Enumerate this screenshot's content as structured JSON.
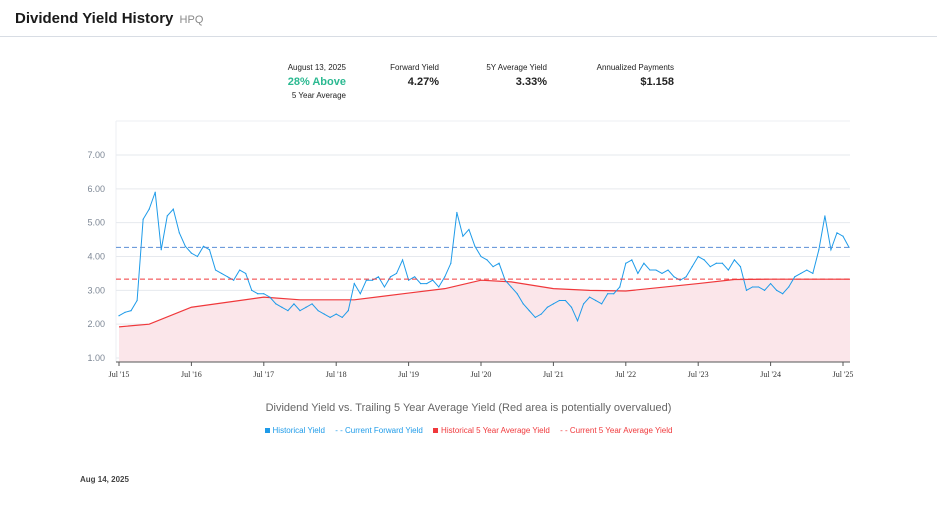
{
  "header": {
    "title": "Dividend Yield History",
    "ticker": "HPQ"
  },
  "stats": {
    "date": "August 13, 2025",
    "relative": "28% Above",
    "relative_sub": "5 Year Average",
    "forward_label": "Forward Yield",
    "forward_value": "4.27%",
    "avg_label": "5Y Average Yield",
    "avg_value": "3.33%",
    "payments_label": "Annualized Payments",
    "payments_value": "$1.158"
  },
  "footer_date": "Aug 14, 2025",
  "colors": {
    "yield": "#1e9be9",
    "avg": "#f0383b",
    "fill": "#fbe6ea",
    "green": "#2bb991"
  },
  "chart_data": {
    "type": "line",
    "subtitle": "Dividend Yield vs. Trailing 5 Year Average Yield (Red area is potentially overvalued)",
    "ylim": [
      1,
      8
    ],
    "yticks": [
      "1.00",
      "2.00",
      "3.00",
      "4.00",
      "5.00",
      "6.00",
      "7.00"
    ],
    "xticks": [
      "Jul '15",
      "Jul '16",
      "Jul '17",
      "Jul '18",
      "Jul '19",
      "Jul '20",
      "Jul '21",
      "Jul '22",
      "Jul '23",
      "Jul '24",
      "Jul '25"
    ],
    "grid": true,
    "legend_position": "bottom",
    "legend": [
      "Historical Yield",
      "Current Forward Yield",
      "Historical 5 Year Average Yield",
      "Current 5 Year Average Yield"
    ],
    "current_forward_yield": 4.27,
    "current_5y_average": 3.33,
    "series": [
      {
        "name": "Historical Yield",
        "x": [
          "2015-07",
          "2015-08",
          "2015-09",
          "2015-10",
          "2015-11",
          "2015-12",
          "2016-01",
          "2016-02",
          "2016-03",
          "2016-04",
          "2016-05",
          "2016-06",
          "2016-07",
          "2016-08",
          "2016-09",
          "2016-10",
          "2016-11",
          "2016-12",
          "2017-01",
          "2017-02",
          "2017-03",
          "2017-04",
          "2017-05",
          "2017-06",
          "2017-07",
          "2017-08",
          "2017-09",
          "2017-10",
          "2017-11",
          "2017-12",
          "2018-01",
          "2018-02",
          "2018-03",
          "2018-04",
          "2018-05",
          "2018-06",
          "2018-07",
          "2018-08",
          "2018-09",
          "2018-10",
          "2018-11",
          "2018-12",
          "2019-01",
          "2019-02",
          "2019-03",
          "2019-04",
          "2019-05",
          "2019-06",
          "2019-07",
          "2019-08",
          "2019-09",
          "2019-10",
          "2019-11",
          "2019-12",
          "2020-01",
          "2020-02",
          "2020-03",
          "2020-04",
          "2020-05",
          "2020-06",
          "2020-07",
          "2020-08",
          "2020-09",
          "2020-10",
          "2020-11",
          "2020-12",
          "2021-01",
          "2021-02",
          "2021-03",
          "2021-04",
          "2021-05",
          "2021-06",
          "2021-07",
          "2021-08",
          "2021-09",
          "2021-10",
          "2021-11",
          "2021-12",
          "2022-01",
          "2022-02",
          "2022-03",
          "2022-04",
          "2022-05",
          "2022-06",
          "2022-07",
          "2022-08",
          "2022-09",
          "2022-10",
          "2022-11",
          "2022-12",
          "2023-01",
          "2023-02",
          "2023-03",
          "2023-04",
          "2023-05",
          "2023-06",
          "2023-07",
          "2023-08",
          "2023-09",
          "2023-10",
          "2023-11",
          "2023-12",
          "2024-01",
          "2024-02",
          "2024-03",
          "2024-04",
          "2024-05",
          "2024-06",
          "2024-07",
          "2024-08",
          "2024-09",
          "2024-10",
          "2024-11",
          "2024-12",
          "2025-01",
          "2025-02",
          "2025-03",
          "2025-04",
          "2025-05",
          "2025-06",
          "2025-07",
          "2025-08"
        ],
        "values": [
          2.25,
          2.35,
          2.4,
          2.7,
          5.1,
          5.4,
          5.9,
          4.2,
          5.2,
          5.4,
          4.7,
          4.3,
          4.1,
          4.0,
          4.3,
          4.2,
          3.6,
          3.5,
          3.4,
          3.3,
          3.6,
          3.5,
          3.0,
          2.9,
          2.9,
          2.8,
          2.6,
          2.5,
          2.4,
          2.6,
          2.4,
          2.5,
          2.6,
          2.4,
          2.3,
          2.2,
          2.3,
          2.2,
          2.4,
          3.2,
          2.9,
          3.3,
          3.3,
          3.4,
          3.1,
          3.4,
          3.5,
          3.9,
          3.3,
          3.4,
          3.2,
          3.2,
          3.3,
          3.1,
          3.4,
          3.8,
          5.3,
          4.6,
          4.8,
          4.3,
          4.0,
          3.9,
          3.7,
          3.8,
          3.3,
          3.1,
          2.9,
          2.6,
          2.4,
          2.2,
          2.3,
          2.5,
          2.6,
          2.7,
          2.7,
          2.5,
          2.1,
          2.6,
          2.8,
          2.7,
          2.6,
          2.9,
          2.9,
          3.1,
          3.8,
          3.9,
          3.5,
          3.8,
          3.6,
          3.6,
          3.5,
          3.6,
          3.4,
          3.3,
          3.4,
          3.7,
          4.0,
          3.9,
          3.7,
          3.8,
          3.8,
          3.6,
          3.9,
          3.7,
          3.0,
          3.1,
          3.1,
          3.0,
          3.2,
          3.0,
          2.9,
          3.1,
          3.4,
          3.5,
          3.6,
          3.5,
          4.2,
          5.2,
          4.2,
          4.7,
          4.6,
          4.27
        ]
      },
      {
        "name": "Historical 5 Year Average Yield",
        "x": [
          "2015-07",
          "2015-12",
          "2016-07",
          "2017-07",
          "2018-01",
          "2018-10",
          "2019-07",
          "2020-01",
          "2020-07",
          "2020-12",
          "2021-07",
          "2022-01",
          "2022-07",
          "2023-07",
          "2024-01",
          "2024-07",
          "2025-08"
        ],
        "values": [
          1.92,
          2.0,
          2.5,
          2.8,
          2.72,
          2.72,
          2.92,
          3.05,
          3.3,
          3.25,
          3.05,
          3.0,
          2.98,
          3.2,
          3.32,
          3.33,
          3.33
        ]
      }
    ]
  }
}
